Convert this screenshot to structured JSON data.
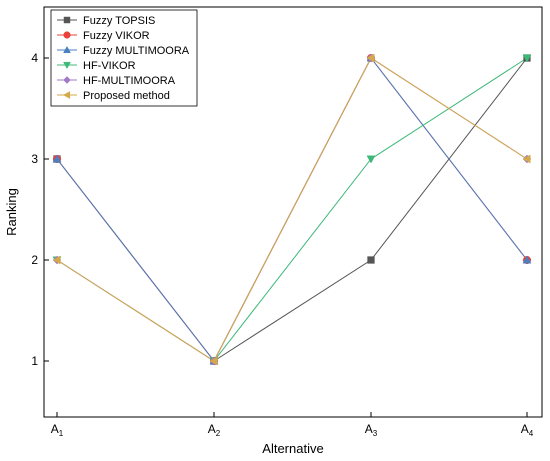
{
  "chart_data": {
    "type": "line",
    "xlabel": "Alternative",
    "ylabel": "Ranking",
    "categories": [
      {
        "base": "A",
        "sub": "1"
      },
      {
        "base": "A",
        "sub": "2"
      },
      {
        "base": "A",
        "sub": "3"
      },
      {
        "base": "A",
        "sub": "4"
      }
    ],
    "ylim": [
      0.5,
      4.5
    ],
    "yticks": [
      "1",
      "2",
      "3",
      "4"
    ],
    "grid": false,
    "legend_position": "top-left",
    "series": [
      {
        "name": "Fuzzy TOPSIS",
        "values": [
          3,
          1,
          2,
          4
        ],
        "color": "#555555",
        "marker": "square"
      },
      {
        "name": "Fuzzy VIKOR",
        "values": [
          3,
          1,
          4,
          2
        ],
        "color": "#e8413b",
        "marker": "circle"
      },
      {
        "name": "Fuzzy MULTIMOORA",
        "values": [
          3,
          1,
          4,
          2
        ],
        "color": "#4a7fc1",
        "marker": "triangle-up"
      },
      {
        "name": "HF-VIKOR",
        "values": [
          2,
          1,
          3,
          4
        ],
        "color": "#3cb878",
        "marker": "triangle-down"
      },
      {
        "name": "HF-MULTIMOORA",
        "values": [
          2,
          1,
          4,
          3
        ],
        "color": "#a07cc6",
        "marker": "diamond"
      },
      {
        "name": "Proposed method",
        "values": [
          2,
          1,
          4,
          3
        ],
        "color": "#d4a94a",
        "marker": "triangle-left"
      }
    ]
  }
}
